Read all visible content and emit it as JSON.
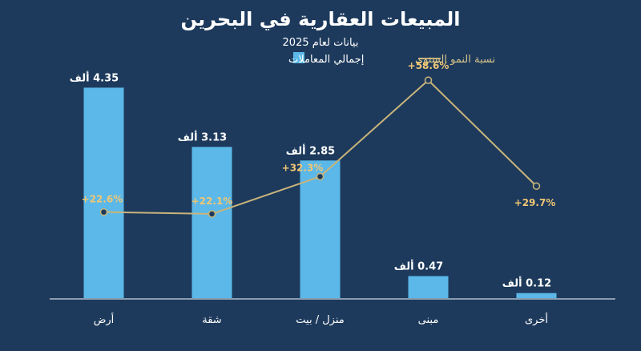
{
  "chart_data": {
    "type": "bar",
    "title": "المبيعات العقارية في البحرين",
    "subtitle": "بيانات لعام 2025",
    "legend": {
      "position": "top-right",
      "bar_label": "إجمالي المعاملات",
      "line_label": "نسبة النمو السنوي"
    },
    "categories": [
      "أرض",
      "شقة",
      "منزل / بيت",
      "مبنى",
      "أخرى"
    ],
    "series": [
      {
        "name": "إجمالي المعاملات",
        "type": "bar",
        "values": [
          4.35,
          3.13,
          2.85,
          0.47,
          0.12
        ],
        "labels": [
          "4.35 ألف",
          "3.13 ألف",
          "2.85 ألف",
          "0.47 ألف",
          "0.12 ألف"
        ]
      },
      {
        "name": "نسبة النمو السنوي",
        "type": "line",
        "values": [
          22.6,
          22.1,
          32.3,
          58.6,
          29.7
        ],
        "labels": [
          "+22.6%",
          "+22.1%",
          "+32.3%",
          "+58.6%",
          "+29.7%"
        ]
      }
    ],
    "ylim": [
      0,
      5
    ],
    "y2lim": [
      0,
      70
    ],
    "grid": false,
    "colors": {
      "background": "#1d3a5c",
      "bar": "#5bb8e8",
      "line": "#c9b47a",
      "line_label": "#f0c674",
      "text": "#ffffff",
      "axis": "#8a9cb0"
    }
  }
}
